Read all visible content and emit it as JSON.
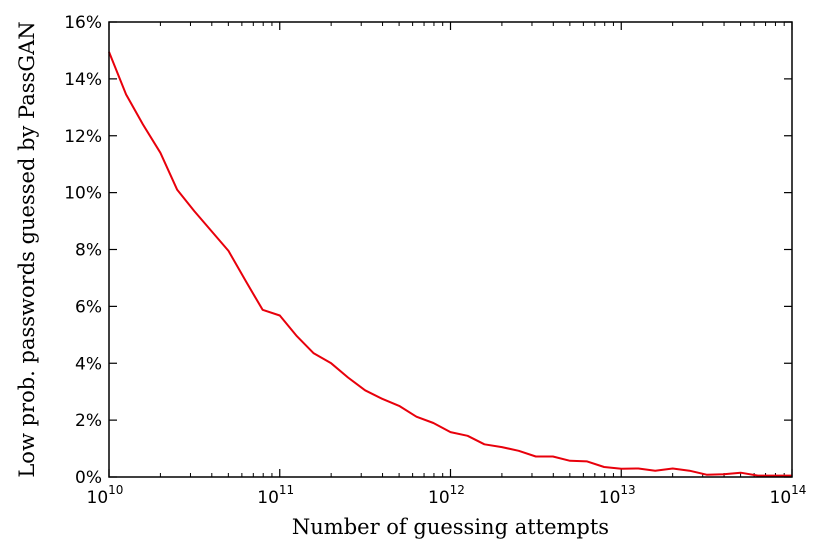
{
  "chart_data": {
    "type": "line",
    "xlabel": "Number of guessing attempts",
    "ylabel": "Low prob. passwords guessed by PassGAN",
    "x_scale": "log",
    "xlim": [
      10000000000.0,
      100000000000000.0
    ],
    "ylim": [
      0,
      16
    ],
    "y_unit": "%",
    "grid": false,
    "legend": "none",
    "x_ticks": [
      {
        "base": "10",
        "exp": "10",
        "value": 10000000000.0
      },
      {
        "base": "10",
        "exp": "11",
        "value": 100000000000.0
      },
      {
        "base": "10",
        "exp": "12",
        "value": 1000000000000.0
      },
      {
        "base": "10",
        "exp": "13",
        "value": 10000000000000.0
      },
      {
        "base": "10",
        "exp": "14",
        "value": 100000000000000.0
      }
    ],
    "y_ticks": [
      {
        "label": "0%",
        "value": 0
      },
      {
        "label": "2%",
        "value": 2
      },
      {
        "label": "4%",
        "value": 4
      },
      {
        "label": "6%",
        "value": 6
      },
      {
        "label": "8%",
        "value": 8
      },
      {
        "label": "10%",
        "value": 10
      },
      {
        "label": "12%",
        "value": 12
      },
      {
        "label": "14%",
        "value": 14
      },
      {
        "label": "16%",
        "value": 16
      }
    ],
    "series": [
      {
        "color": "#e8000b",
        "points": [
          [
            10000000000.0,
            14.95
          ],
          [
            12600000000.0,
            13.45
          ],
          [
            15800000000.0,
            12.4
          ],
          [
            20000000000.0,
            11.4
          ],
          [
            25100000000.0,
            10.1
          ],
          [
            31600000000.0,
            9.35
          ],
          [
            39800000000.0,
            8.65
          ],
          [
            50100000000.0,
            7.95
          ],
          [
            63100000000.0,
            6.9
          ],
          [
            79400000000.0,
            5.88
          ],
          [
            100000000000.0,
            5.68
          ],
          [
            126000000000.0,
            4.95
          ],
          [
            158000000000.0,
            4.35
          ],
          [
            200000000000.0,
            4.0
          ],
          [
            251000000000.0,
            3.5
          ],
          [
            316000000000.0,
            3.05
          ],
          [
            398000000000.0,
            2.75
          ],
          [
            501000000000.0,
            2.5
          ],
          [
            631000000000.0,
            2.12
          ],
          [
            794000000000.0,
            1.9
          ],
          [
            1000000000000.0,
            1.58
          ],
          [
            1260000000000.0,
            1.45
          ],
          [
            1580000000000.0,
            1.15
          ],
          [
            2000000000000.0,
            1.05
          ],
          [
            2510000000000.0,
            0.92
          ],
          [
            3160000000000.0,
            0.72
          ],
          [
            3980000000000.0,
            0.72
          ],
          [
            5010000000000.0,
            0.57
          ],
          [
            6310000000000.0,
            0.55
          ],
          [
            7940000000000.0,
            0.35
          ],
          [
            10000000000000.0,
            0.29
          ],
          [
            12600000000000.0,
            0.3
          ],
          [
            15800000000000.0,
            0.22
          ],
          [
            20000000000000.0,
            0.3
          ],
          [
            25100000000000.0,
            0.22
          ],
          [
            31600000000000.0,
            0.08
          ],
          [
            39800000000000.0,
            0.1
          ],
          [
            50100000000000.0,
            0.15
          ],
          [
            63100000000000.0,
            0.05
          ],
          [
            79400000000000.0,
            0.05
          ],
          [
            100000000000000.0,
            0.05
          ]
        ]
      }
    ]
  }
}
